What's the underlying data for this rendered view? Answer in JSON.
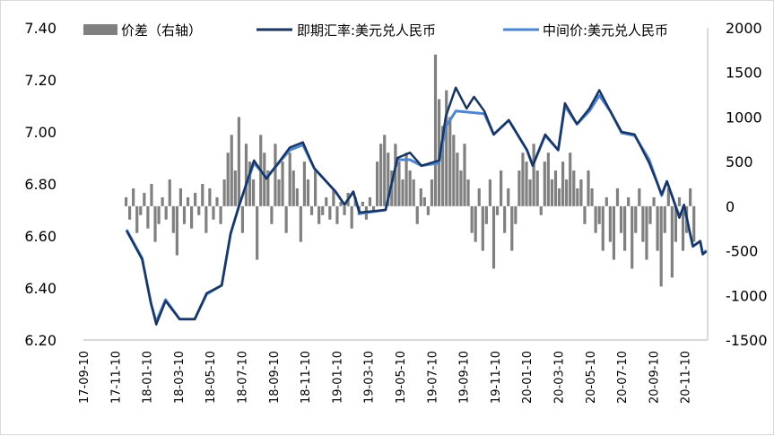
{
  "chart_data": {
    "type": "line+bar",
    "title": "",
    "legend_position": "top",
    "grid": false,
    "colors": {
      "spread": "#808080",
      "spot": "#1a3560",
      "mid": "#4e86d0"
    },
    "y_left": {
      "range": [
        6.2,
        7.4
      ],
      "ticks": [
        "6.20",
        "6.40",
        "6.60",
        "6.80",
        "7.00",
        "7.20",
        "7.40"
      ]
    },
    "y_right": {
      "range": [
        -1500,
        2000
      ],
      "ticks": [
        "-1500",
        "-1000",
        "-500",
        "0",
        "500",
        "1000",
        "1500",
        "2000"
      ]
    },
    "x_ticks": [
      "17-09-10",
      "17-11-10",
      "18-01-10",
      "18-03-10",
      "18-05-10",
      "18-07-10",
      "18-09-10",
      "18-11-10",
      "19-01-10",
      "19-03-10",
      "19-05-10",
      "19-07-10",
      "19-09-10",
      "19-11-10",
      "20-01-10",
      "20-03-10",
      "20-05-10",
      "20-07-10",
      "20-09-10",
      "20-11-10"
    ],
    "series": [
      {
        "name": "价差（右轴）",
        "type": "bar",
        "axis": "right",
        "start": "2017-12-01",
        "step_days": 7,
        "values": [
          100,
          -150,
          200,
          -300,
          -100,
          150,
          -250,
          250,
          -400,
          -200,
          100,
          -150,
          300,
          -300,
          -550,
          200,
          -200,
          100,
          -250,
          150,
          -100,
          250,
          -300,
          200,
          -150,
          100,
          -200,
          300,
          600,
          800,
          400,
          1000,
          -300,
          700,
          500,
          300,
          -600,
          800,
          600,
          400,
          -200,
          700,
          300,
          500,
          -300,
          600,
          400,
          200,
          -400,
          500,
          300,
          -100,
          400,
          -200,
          -100,
          100,
          -150,
          200,
          -200,
          50,
          -100,
          150,
          -250,
          100,
          -100,
          50,
          -150,
          100,
          -50,
          500,
          700,
          800,
          600,
          400,
          700,
          500,
          300,
          600,
          400,
          300,
          -200,
          200,
          100,
          -100,
          300,
          1700,
          1200,
          900,
          1300,
          1000,
          800,
          600,
          400,
          700,
          300,
          -300,
          -400,
          200,
          -500,
          -200,
          300,
          -700,
          -100,
          400,
          -300,
          200,
          -500,
          -200,
          400,
          600,
          500,
          300,
          700,
          400,
          -100,
          500,
          600,
          300,
          400,
          200,
          500,
          300,
          600,
          400,
          200,
          300,
          -200,
          400,
          200,
          -300,
          -200,
          -500,
          100,
          -400,
          -600,
          200,
          -300,
          -500,
          100,
          -700,
          -300,
          200,
          -400,
          -600,
          -200,
          100,
          -500,
          -900,
          -300,
          200,
          -800,
          -400,
          100,
          -500,
          -300,
          200,
          -400
        ]
      },
      {
        "name": "即期汇率:美元兑人民币",
        "type": "line",
        "axis": "left",
        "points": [
          [
            "2017-12-02",
            6.62
          ],
          [
            "2018-01-01",
            6.51
          ],
          [
            "2018-01-18",
            6.34
          ],
          [
            "2018-01-28",
            6.26
          ],
          [
            "2018-02-15",
            6.35
          ],
          [
            "2018-03-14",
            6.28
          ],
          [
            "2018-04-12",
            6.28
          ],
          [
            "2018-05-05",
            6.38
          ],
          [
            "2018-06-03",
            6.41
          ],
          [
            "2018-06-20",
            6.61
          ],
          [
            "2018-07-07",
            6.72
          ],
          [
            "2018-08-04",
            6.89
          ],
          [
            "2018-08-28",
            6.82
          ],
          [
            "2018-10-12",
            6.94
          ],
          [
            "2018-11-06",
            6.96
          ],
          [
            "2018-11-28",
            6.86
          ],
          [
            "2019-01-08",
            6.77
          ],
          [
            "2019-01-25",
            6.72
          ],
          [
            "2019-02-11",
            6.77
          ],
          [
            "2019-02-23",
            6.69
          ],
          [
            "2019-04-14",
            6.7
          ],
          [
            "2019-05-07",
            6.9
          ],
          [
            "2019-05-31",
            6.92
          ],
          [
            "2019-06-22",
            6.87
          ],
          [
            "2019-07-26",
            6.89
          ],
          [
            "2019-08-08",
            7.06
          ],
          [
            "2019-08-27",
            7.17
          ],
          [
            "2019-09-17",
            7.09
          ],
          [
            "2019-10-01",
            7.135
          ],
          [
            "2019-10-21",
            7.08
          ],
          [
            "2019-11-08",
            6.99
          ],
          [
            "2019-12-07",
            7.045
          ],
          [
            "2020-01-11",
            6.93
          ],
          [
            "2020-01-22",
            6.87
          ],
          [
            "2020-02-15",
            6.99
          ],
          [
            "2020-03-11",
            6.93
          ],
          [
            "2020-03-24",
            7.11
          ],
          [
            "2020-04-16",
            7.03
          ],
          [
            "2020-05-10",
            7.09
          ],
          [
            "2020-05-29",
            7.16
          ],
          [
            "2020-06-19",
            7.08
          ],
          [
            "2020-07-11",
            7.0
          ],
          [
            "2020-08-05",
            6.99
          ],
          [
            "2020-09-02",
            6.88
          ],
          [
            "2020-09-26",
            6.76
          ],
          [
            "2020-10-06",
            6.81
          ],
          [
            "2020-10-30",
            6.67
          ],
          [
            "2020-11-08",
            6.72
          ],
          [
            "2020-11-25",
            6.56
          ],
          [
            "2020-12-09",
            6.58
          ],
          [
            "2020-12-14",
            6.53
          ],
          [
            "2020-12-21",
            6.54
          ]
        ]
      },
      {
        "name": "中间价:美元兑人民币",
        "type": "line",
        "axis": "left",
        "points": [
          [
            "2017-12-02",
            6.624
          ],
          [
            "2018-01-01",
            6.514
          ],
          [
            "2018-01-18",
            6.34
          ],
          [
            "2018-01-28",
            6.27
          ],
          [
            "2018-02-15",
            6.355
          ],
          [
            "2018-03-14",
            6.28
          ],
          [
            "2018-04-12",
            6.28
          ],
          [
            "2018-05-05",
            6.376
          ],
          [
            "2018-06-03",
            6.41
          ],
          [
            "2018-06-20",
            6.607
          ],
          [
            "2018-07-07",
            6.72
          ],
          [
            "2018-08-04",
            6.88
          ],
          [
            "2018-08-28",
            6.825
          ],
          [
            "2018-10-12",
            6.93
          ],
          [
            "2018-11-06",
            6.95
          ],
          [
            "2018-11-28",
            6.86
          ],
          [
            "2019-01-08",
            6.77
          ],
          [
            "2019-01-25",
            6.72
          ],
          [
            "2019-02-11",
            6.77
          ],
          [
            "2019-02-23",
            6.686
          ],
          [
            "2019-04-14",
            6.7
          ],
          [
            "2019-05-07",
            6.893
          ],
          [
            "2019-05-31",
            6.893
          ],
          [
            "2019-06-22",
            6.87
          ],
          [
            "2019-07-26",
            6.88
          ],
          [
            "2019-08-08",
            7.02
          ],
          [
            "2019-08-27",
            7.08
          ],
          [
            "2019-10-21",
            7.07
          ],
          [
            "2019-11-08",
            6.99
          ],
          [
            "2019-12-07",
            7.045
          ],
          [
            "2020-01-11",
            6.93
          ],
          [
            "2020-01-22",
            6.87
          ],
          [
            "2020-02-15",
            6.986
          ],
          [
            "2020-03-11",
            6.93
          ],
          [
            "2020-03-24",
            7.1
          ],
          [
            "2020-04-16",
            7.03
          ],
          [
            "2020-05-10",
            7.08
          ],
          [
            "2020-05-29",
            7.14
          ],
          [
            "2020-06-19",
            7.08
          ],
          [
            "2020-07-11",
            6.996
          ],
          [
            "2020-08-05",
            6.986
          ],
          [
            "2020-09-02",
            6.893
          ],
          [
            "2020-09-26",
            6.755
          ],
          [
            "2020-10-06",
            6.81
          ],
          [
            "2020-10-30",
            6.676
          ],
          [
            "2020-11-08",
            6.71
          ],
          [
            "2020-11-25",
            6.56
          ],
          [
            "2020-12-09",
            6.58
          ],
          [
            "2020-12-14",
            6.53
          ],
          [
            "2020-12-21",
            6.545
          ]
        ]
      }
    ]
  }
}
